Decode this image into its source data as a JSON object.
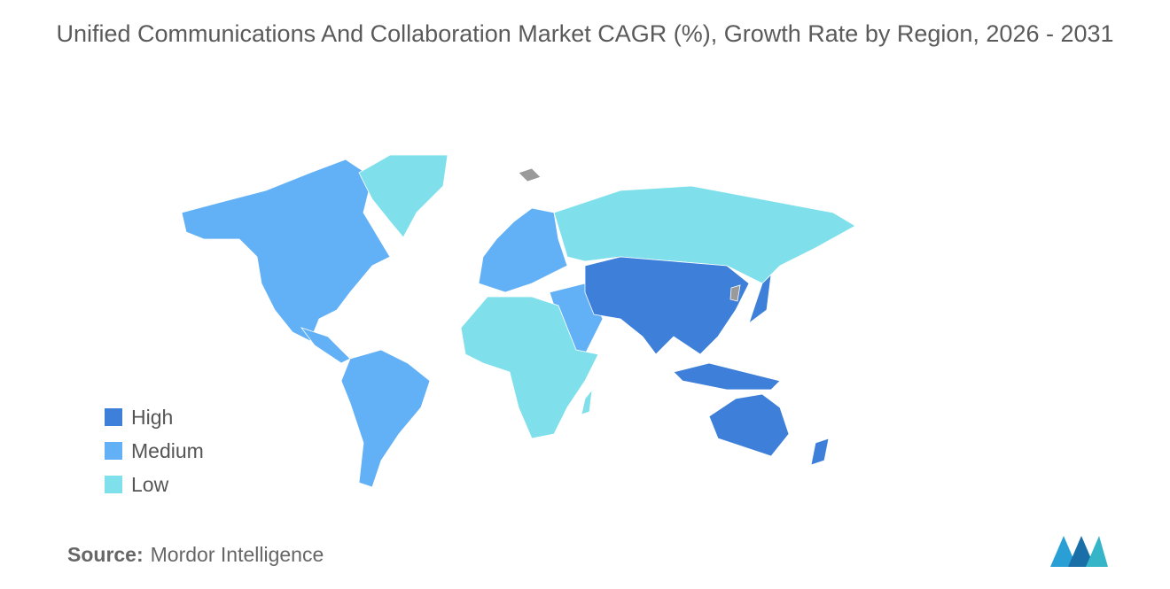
{
  "title": "Unified Communications And Collaboration Market CAGR (%), Growth Rate by Region, 2026 - 2031",
  "legend": [
    {
      "label": "High",
      "color": "#3d7fd9"
    },
    {
      "label": "Medium",
      "color": "#62b0f5"
    },
    {
      "label": "Low",
      "color": "#7fe0ec"
    }
  ],
  "source": {
    "label": "Source:",
    "text": "Mordor Intelligence"
  }
}
